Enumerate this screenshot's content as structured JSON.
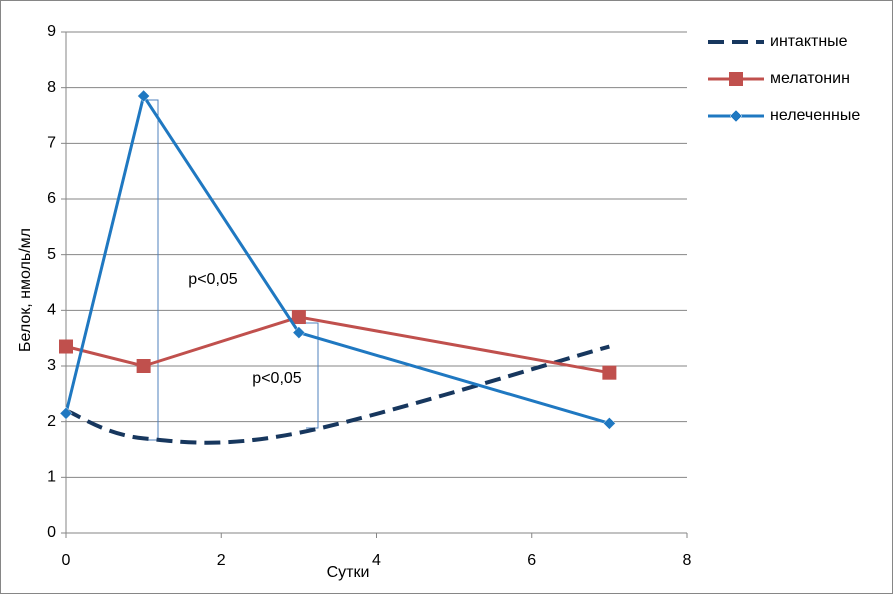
{
  "chart_data": {
    "type": "line",
    "x_label": "Сутки",
    "y_label": "Белок, нмоль/мл",
    "xlim": [
      0,
      8
    ],
    "xticks": [
      0,
      2,
      4,
      6,
      8
    ],
    "ylim": [
      0,
      9
    ],
    "yticks": [
      0,
      1,
      2,
      3,
      4,
      5,
      6,
      7,
      8,
      9
    ],
    "grid": true,
    "legend": "right",
    "annotations": [
      "p<0,05",
      "p<0,05"
    ],
    "series": [
      {
        "name": "интактные",
        "color": "#17375e",
        "style": "dashed",
        "smooth": true,
        "x": [
          0,
          1,
          3,
          7
        ],
        "values": [
          2.2,
          1.7,
          1.8,
          3.35
        ]
      },
      {
        "name": "мелатонин",
        "color": "#c0504d",
        "marker": "square",
        "x": [
          0,
          1,
          3,
          7
        ],
        "values": [
          3.35,
          3.0,
          3.88,
          2.88
        ]
      },
      {
        "name": "нелеченные",
        "color": "#1f78c1",
        "marker": "diamond",
        "x": [
          0,
          1,
          3,
          7
        ],
        "values": [
          2.15,
          7.85,
          3.6,
          1.97
        ]
      }
    ]
  }
}
